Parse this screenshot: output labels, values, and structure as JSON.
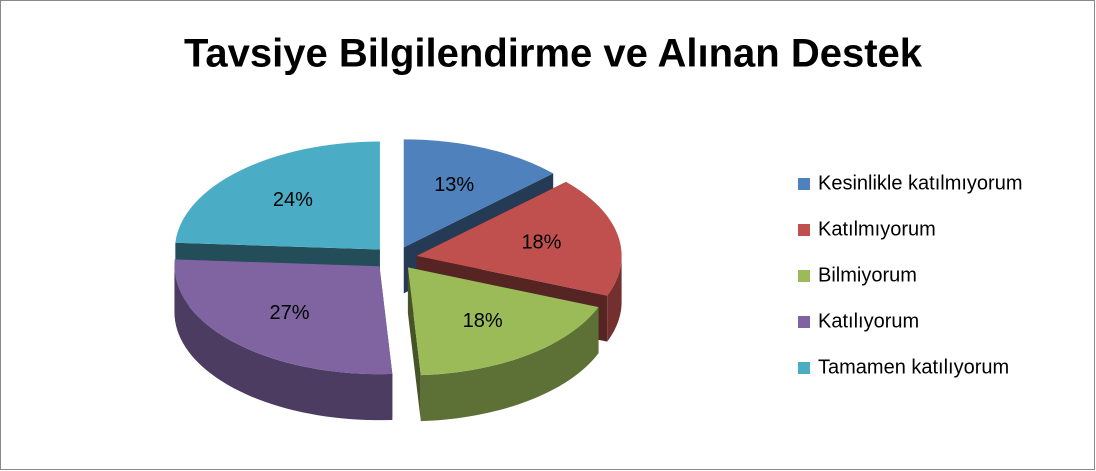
{
  "chart_data": {
    "type": "pie",
    "title": "Tavsiye Bilgilendirme ve Alınan Destek",
    "categories": [
      "Kesinlikle katılmıyorum",
      "Katılmıyorum",
      "Bilmiyorum",
      "Katılıyorum",
      "Tamamen katılıyorum"
    ],
    "values": [
      13,
      18,
      18,
      27,
      24
    ],
    "value_labels": [
      "13%",
      "18%",
      "18%",
      "27%",
      "24%"
    ],
    "colors": [
      "#4f81bd",
      "#c0504d",
      "#9bbb59",
      "#8064a2",
      "#4bacc6"
    ],
    "legend": "right"
  }
}
